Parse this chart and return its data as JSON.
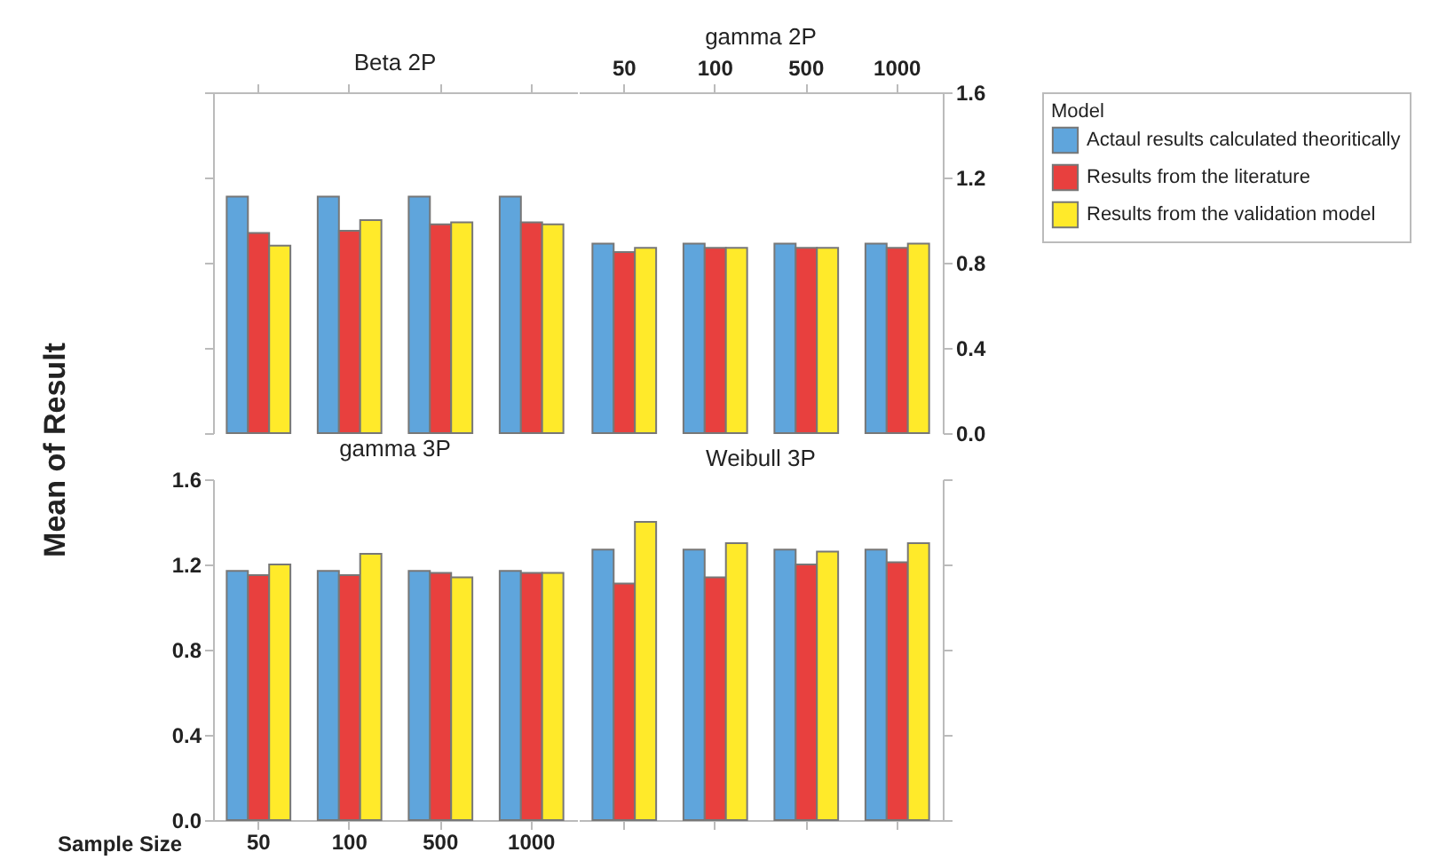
{
  "chart_data": [
    {
      "type": "bar",
      "title": "Beta 2P",
      "ylabel": "Mean of Result",
      "categories": [
        "50",
        "100",
        "500",
        "1000"
      ],
      "ylim": [
        0,
        1.6
      ],
      "yticks": [
        0,
        0.4,
        0.8,
        1.2,
        1.6
      ],
      "tick_labels": false,
      "series": [
        {
          "color": "#5fa5dc",
          "values": [
            1.11,
            1.11,
            1.11,
            1.11
          ]
        },
        {
          "color": "#e8403e",
          "values": [
            0.94,
            0.95,
            0.98,
            0.99
          ]
        },
        {
          "color": "#ffea2a",
          "values": [
            0.88,
            1.0,
            0.99,
            0.98
          ]
        }
      ]
    },
    {
      "type": "bar",
      "title": "gamma 2P",
      "legend_title": "Model",
      "legend": "right",
      "categories": [
        "50",
        "100",
        "500",
        "1000"
      ],
      "ylim": [
        0,
        1.6
      ],
      "yticks": [
        {
          "value": 0,
          "label": "0.0"
        },
        0.4,
        0.8,
        1.2,
        1.6
      ],
      "series": [
        {
          "name": "Actaul results calculated theoritically",
          "color": "#5fa5dc",
          "values": [
            0.89,
            0.89,
            0.89,
            0.89
          ]
        },
        {
          "name": "Results from the literature",
          "color": "#e8403e",
          "values": [
            0.85,
            0.87,
            0.87,
            0.87
          ]
        },
        {
          "name": "Results from the validation model",
          "color": "#ffea2a",
          "values": [
            0.87,
            0.87,
            0.87,
            0.89
          ]
        }
      ]
    },
    {
      "type": "bar",
      "title": "gamma 3P",
      "xlabel": "Sample Size",
      "categories": [
        "50",
        "100",
        "500",
        "1000"
      ],
      "ylim": [
        0,
        1.6
      ],
      "yticks": [
        {
          "value": 0,
          "label": "0.0"
        },
        0.4,
        0.8,
        1.2,
        1.6
      ],
      "series": [
        {
          "color": "#5fa5dc",
          "values": [
            1.17,
            1.17,
            1.17,
            1.17
          ]
        },
        {
          "color": "#e8403e",
          "values": [
            1.15,
            1.15,
            1.16,
            1.16
          ]
        },
        {
          "color": "#ffea2a",
          "values": [
            1.2,
            1.25,
            1.14,
            1.16
          ]
        }
      ]
    },
    {
      "type": "bar",
      "title": "Weibull 3P",
      "categories": [
        "50",
        "100",
        "500",
        "1000"
      ],
      "ylim": [
        0,
        1.6
      ],
      "yticks": [
        0,
        0.4,
        0.8,
        1.2,
        1.6
      ],
      "tick_labels": false,
      "series": [
        {
          "color": "#5fa5dc",
          "values": [
            1.27,
            1.27,
            1.27,
            1.27
          ]
        },
        {
          "color": "#e8403e",
          "values": [
            1.11,
            1.14,
            1.2,
            1.21
          ]
        },
        {
          "color": "#ffea2a",
          "values": [
            1.4,
            1.3,
            1.26,
            1.3
          ]
        }
      ]
    }
  ]
}
